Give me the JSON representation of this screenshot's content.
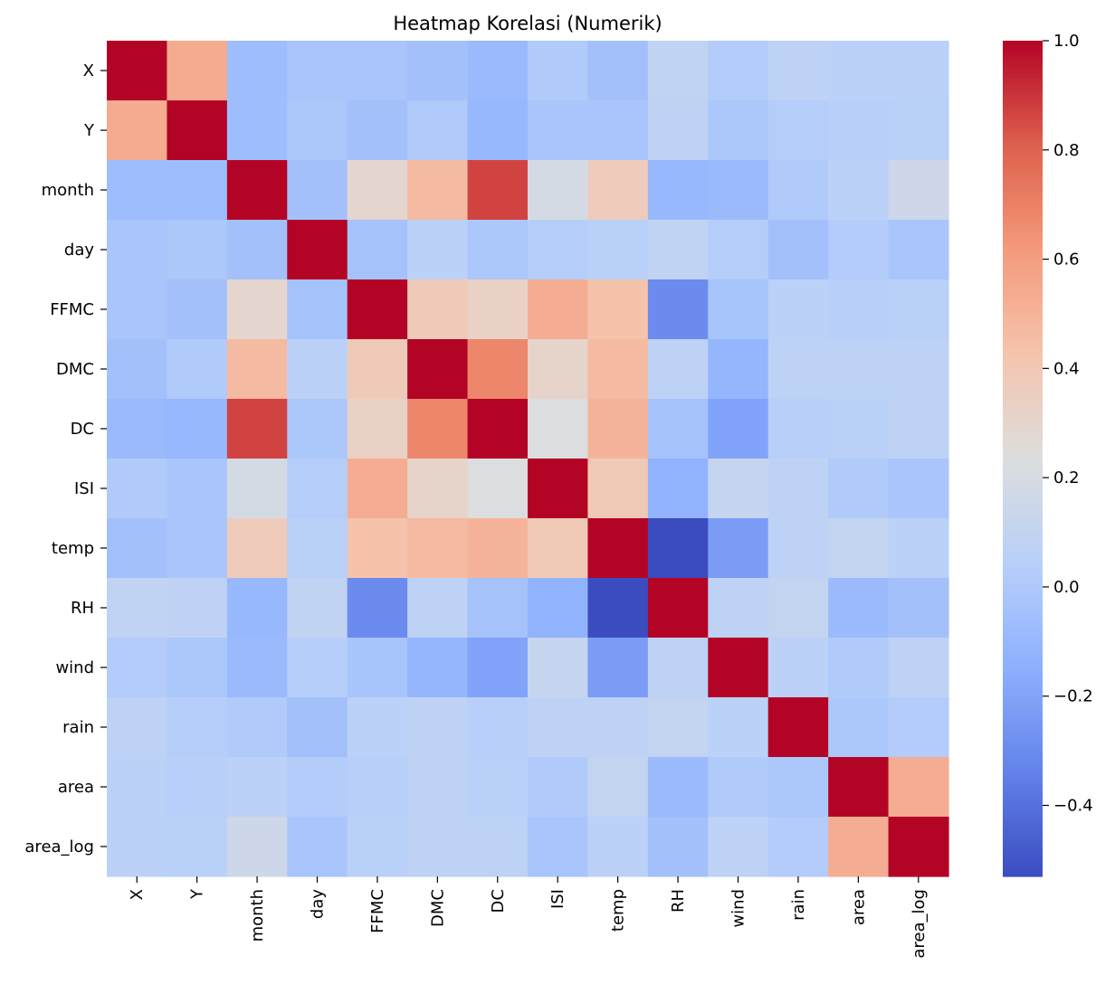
{
  "chart_data": {
    "type": "heatmap",
    "title": "Heatmap Korelasi (Numerik)",
    "xlabel": "",
    "ylabel": "",
    "labels": [
      "X",
      "Y",
      "month",
      "day",
      "FFMC",
      "DMC",
      "DC",
      "ISI",
      "temp",
      "RH",
      "wind",
      "rain",
      "area",
      "area_log"
    ],
    "matrix": [
      [
        1.0,
        0.54,
        -0.07,
        -0.02,
        -0.02,
        -0.05,
        -0.09,
        0.01,
        -0.05,
        0.09,
        0.02,
        0.07,
        0.06,
        0.06
      ],
      [
        0.54,
        1.0,
        -0.07,
        -0.01,
        -0.05,
        0.01,
        -0.1,
        -0.02,
        -0.02,
        0.08,
        -0.01,
        0.03,
        0.04,
        0.05
      ],
      [
        -0.07,
        -0.07,
        1.0,
        -0.05,
        0.29,
        0.47,
        0.87,
        0.19,
        0.37,
        -0.1,
        -0.09,
        0.01,
        0.06,
        0.15
      ],
      [
        -0.02,
        -0.01,
        -0.05,
        1.0,
        -0.04,
        0.06,
        -0.01,
        0.03,
        0.05,
        0.09,
        0.03,
        -0.05,
        0.02,
        -0.02
      ],
      [
        -0.02,
        -0.05,
        0.29,
        -0.04,
        1.0,
        0.38,
        0.33,
        0.53,
        0.43,
        -0.3,
        -0.03,
        0.06,
        0.04,
        0.05
      ],
      [
        -0.05,
        0.01,
        0.47,
        0.06,
        0.38,
        1.0,
        0.68,
        0.31,
        0.47,
        0.07,
        -0.11,
        0.07,
        0.07,
        0.07
      ],
      [
        -0.09,
        -0.1,
        0.87,
        -0.01,
        0.33,
        0.68,
        1.0,
        0.23,
        0.5,
        -0.04,
        -0.2,
        0.04,
        0.05,
        0.07
      ],
      [
        0.01,
        -0.02,
        0.19,
        0.03,
        0.53,
        0.31,
        0.23,
        1.0,
        0.39,
        -0.13,
        0.11,
        0.07,
        0.01,
        -0.02
      ],
      [
        -0.05,
        -0.02,
        0.37,
        0.05,
        0.43,
        0.47,
        0.5,
        0.39,
        1.0,
        -0.53,
        -0.23,
        0.07,
        0.1,
        0.06
      ],
      [
        0.09,
        0.08,
        -0.1,
        0.09,
        -0.3,
        0.07,
        -0.04,
        -0.13,
        -0.53,
        1.0,
        0.07,
        0.1,
        -0.08,
        -0.05
      ],
      [
        0.02,
        -0.01,
        -0.09,
        0.03,
        -0.03,
        -0.11,
        -0.2,
        0.11,
        -0.23,
        0.07,
        1.0,
        0.06,
        0.01,
        0.07
      ],
      [
        0.07,
        0.03,
        0.01,
        -0.05,
        0.06,
        0.07,
        0.04,
        0.07,
        0.07,
        0.1,
        0.06,
        1.0,
        -0.01,
        0.02
      ],
      [
        0.06,
        0.04,
        0.06,
        0.02,
        0.04,
        0.07,
        0.05,
        0.01,
        0.1,
        -0.08,
        0.01,
        -0.01,
        1.0,
        0.53
      ],
      [
        0.06,
        0.05,
        0.15,
        -0.02,
        0.05,
        0.07,
        0.07,
        -0.02,
        0.06,
        -0.05,
        0.07,
        0.02,
        0.53,
        1.0
      ]
    ],
    "vmin": -0.53,
    "vmax": 1.0,
    "colormap": "coolwarm",
    "colorbar_ticks": [
      -0.4,
      -0.2,
      0.0,
      0.2,
      0.4,
      0.6,
      0.8,
      1.0
    ],
    "colorbar_tick_labels": [
      "−0.4",
      "−0.2",
      "0.0",
      "0.2",
      "0.4",
      "0.6",
      "0.8",
      "1.0"
    ],
    "grid": false,
    "legend": "colorbar-right"
  }
}
